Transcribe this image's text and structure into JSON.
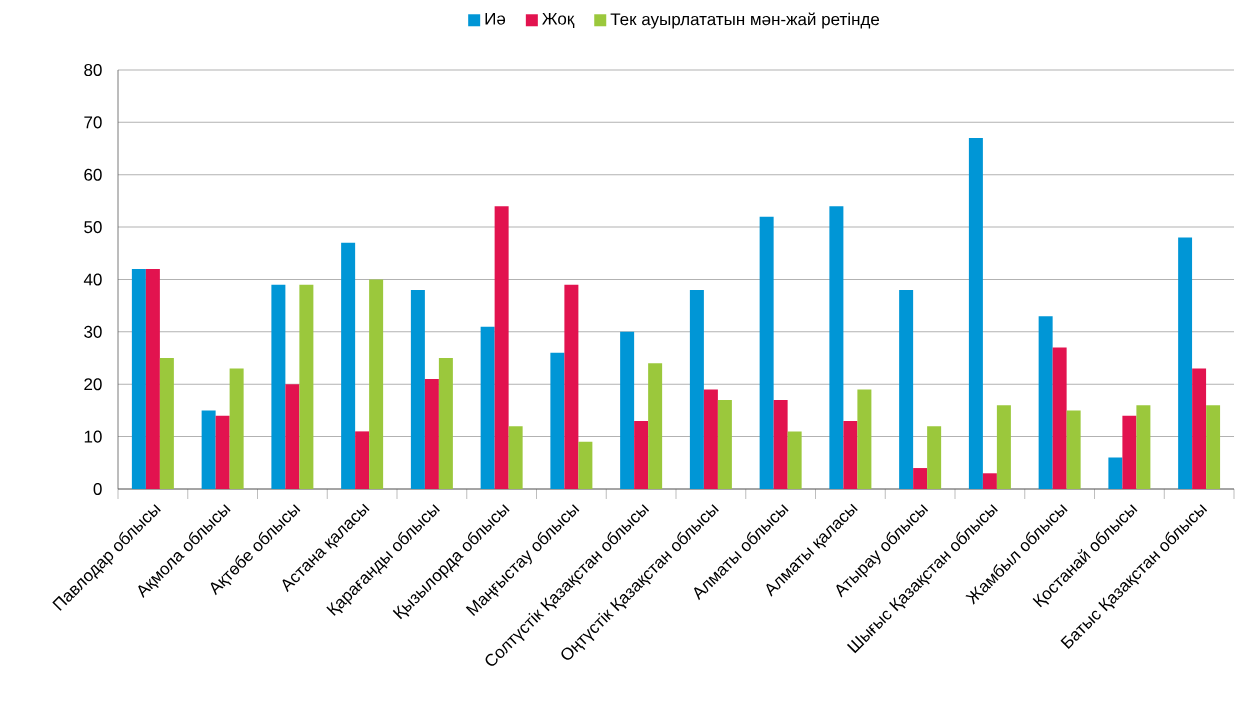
{
  "chart_data": {
    "type": "bar",
    "categories": [
      "Павлодар облысы",
      "Ақмола облысы",
      "Ақтөбе облысы",
      "Астана қаласы",
      "Қарағанды облысы",
      "Қызылорда облысы",
      "Маңғыстау облысы",
      "Солтүстік Қазақстан облысы",
      "Оңтүстік Қазақстан облысы",
      "Алматы облысы",
      "Алматы қаласы",
      "Атырау облысы",
      "Шығыс Қазақстан облысы",
      "Жамбыл облысы",
      "Қостанай облысы",
      "Батыс Қазақстан облысы"
    ],
    "series": [
      {
        "name": "Иә",
        "color": "#0096d6",
        "values": [
          42,
          15,
          39,
          47,
          38,
          31,
          26,
          30,
          38,
          52,
          54,
          38,
          67,
          33,
          6,
          48
        ]
      },
      {
        "name": "Жоқ",
        "color": "#e2134f",
        "values": [
          42,
          14,
          20,
          11,
          21,
          54,
          39,
          13,
          19,
          17,
          13,
          4,
          3,
          27,
          14,
          23
        ]
      },
      {
        "name": "Тек ауырлататын мән-жай ретінде",
        "color": "#9bc83c",
        "values": [
          25,
          23,
          39,
          40,
          25,
          12,
          9,
          24,
          17,
          11,
          19,
          12,
          16,
          15,
          16,
          16
        ]
      }
    ],
    "ylim": [
      0,
      80
    ],
    "yticks": [
      0,
      10,
      20,
      30,
      40,
      50,
      60,
      70,
      80
    ],
    "grid": "y",
    "legend": "top"
  }
}
